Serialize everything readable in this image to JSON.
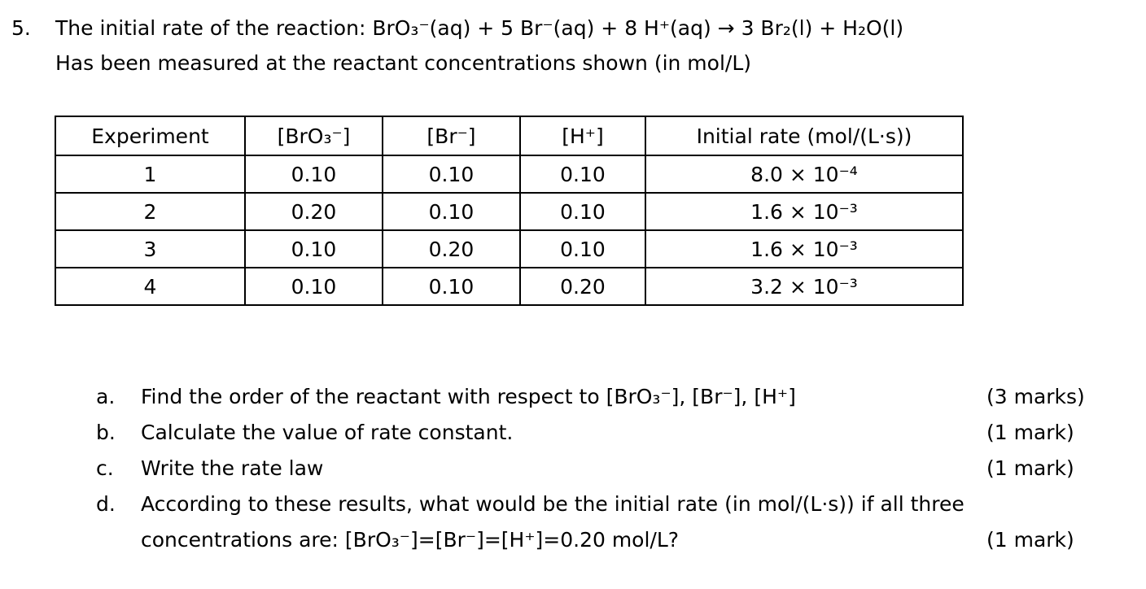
{
  "question": {
    "number": "5.",
    "lines": [
      "The initial rate of the reaction: BrO₃⁻(aq) + 5 Br⁻(aq) + 8 H⁺(aq) → 3 Br₂(l) + H₂O(l)",
      "Has been measured at the reactant concentrations shown (in mol/L)"
    ]
  },
  "table": {
    "header": [
      "Experiment",
      "[BrO₃⁻]",
      "[Br⁻]",
      "[H⁺]",
      "Initial rate (mol/(L·s))"
    ],
    "rows": [
      [
        "1",
        "0.10",
        "0.10",
        "0.10",
        "8.0 × 10⁻⁴"
      ],
      [
        "2",
        "0.20",
        "0.10",
        "0.10",
        "1.6 × 10⁻³"
      ],
      [
        "3",
        "0.10",
        "0.20",
        "0.10",
        "1.6 × 10⁻³"
      ],
      [
        "4",
        "0.10",
        "0.10",
        "0.20",
        "3.2 × 10⁻³"
      ]
    ]
  },
  "parts": [
    {
      "label": "a.",
      "lines": [
        "Find the order of the reactant with respect to [BrO₃⁻], [Br⁻], [H⁺]"
      ],
      "marks": "(3 marks)"
    },
    {
      "label": "b.",
      "lines": [
        "Calculate the value of rate constant."
      ],
      "marks": "(1 mark)"
    },
    {
      "label": "c.",
      "lines": [
        "Write the rate law"
      ],
      "marks": "(1 mark)"
    },
    {
      "label": "d.",
      "lines": [
        "According to these results, what would be the initial rate (in mol/(L·s)) if all three",
        "concentrations are: [BrO₃⁻]=[Br⁻]=[H⁺]=0.20 mol/L?"
      ],
      "marks": "(1 mark)"
    }
  ]
}
